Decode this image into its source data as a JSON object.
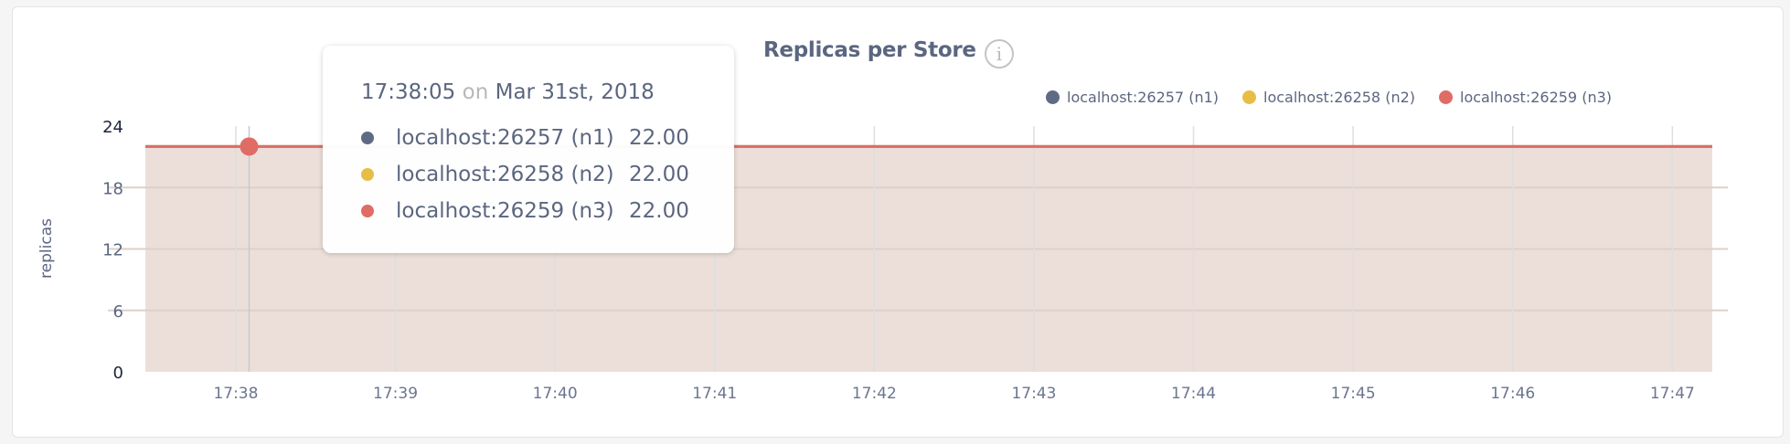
{
  "chart_data": {
    "type": "area",
    "title": "Replicas per Store",
    "ylabel": "replicas",
    "xlabel": "",
    "ylim": [
      0,
      24
    ],
    "yticks": [
      "0",
      "6",
      "12",
      "18",
      "24"
    ],
    "ytick_values": [
      0,
      6,
      12,
      18,
      24
    ],
    "xticks": [
      "17:38",
      "17:39",
      "17:40",
      "17:41",
      "17:42",
      "17:43",
      "17:44",
      "17:45",
      "17:46",
      "17:47"
    ],
    "xlim": [
      "17:37:26",
      "17:47:15"
    ],
    "grid": true,
    "legend_position": "top-right",
    "series": [
      {
        "name": "localhost:26257 (n1)",
        "color": "#5f6a85",
        "x": [
          "17:37:26",
          "17:47:15"
        ],
        "values": [
          22,
          22
        ]
      },
      {
        "name": "localhost:26258 (n2)",
        "color": "#e8bd45",
        "x": [
          "17:37:26",
          "17:47:15"
        ],
        "values": [
          22,
          22
        ]
      },
      {
        "name": "localhost:26259 (n3)",
        "color": "#e06c66",
        "x": [
          "17:37:26",
          "17:47:15"
        ],
        "values": [
          22,
          22
        ]
      }
    ],
    "fill_color": "#ecdfd9",
    "hover_x": "17:38:05"
  },
  "tooltip": {
    "time": "17:38:05",
    "on": "on",
    "date": "Mar 31st, 2018",
    "rows": [
      {
        "name": "localhost:26257 (n1)",
        "value": "22.00"
      },
      {
        "name": "localhost:26258 (n2)",
        "value": "22.00"
      },
      {
        "name": "localhost:26259 (n3)",
        "value": "22.00"
      }
    ]
  },
  "info_icon": "info-circle-icon",
  "info_glyph": "i"
}
